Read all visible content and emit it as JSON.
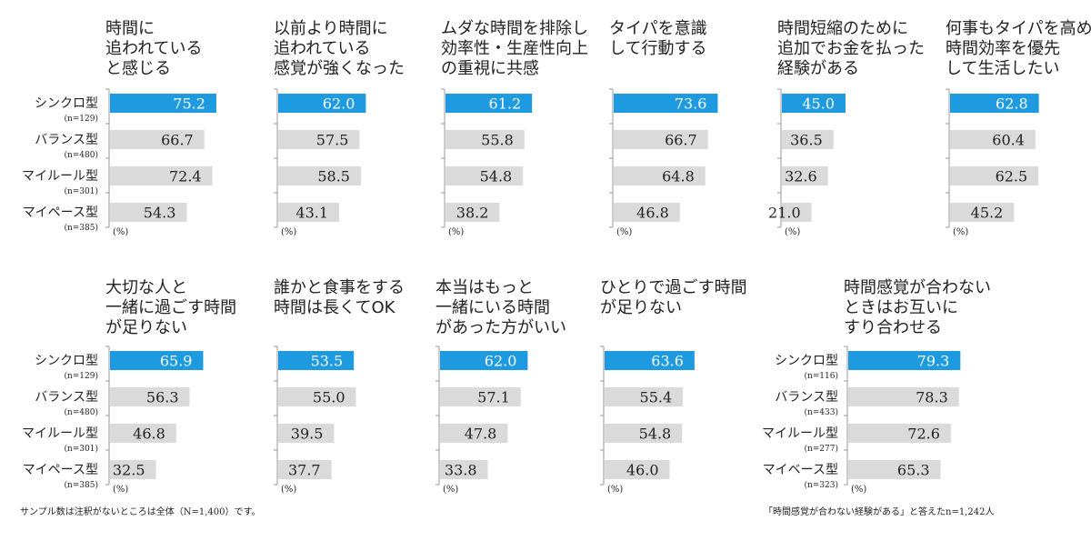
{
  "colors": {
    "highlight": "#1e9be0",
    "gray": "#dadada",
    "axis": "#999999",
    "text": "#222222"
  },
  "unit_label": "(%)",
  "groups": [
    {
      "categories": [
        "シンクロ型",
        "バランス型",
        "マイルール型",
        "マイペース型"
      ],
      "n_labels": [
        "(n=129)",
        "(n=480)",
        "(n=301)",
        "(n=385)"
      ]
    },
    {
      "categories": [
        "シンクロ型",
        "バランス型",
        "マイルール型",
        "マイベース型"
      ],
      "n_labels": [
        "(n=116)",
        "(n=433)",
        "(n=277)",
        "(n=323)"
      ]
    }
  ],
  "chart_data": [
    {
      "type": "bar",
      "title": "時間に\n追われている\nと感じる",
      "values": [
        75.2,
        66.7,
        72.4,
        54.3
      ]
    },
    {
      "type": "bar",
      "title": "以前より時間に\n追われている\n感覚が強くなった",
      "values": [
        62.0,
        57.5,
        58.5,
        43.1
      ]
    },
    {
      "type": "bar",
      "title": "ムダな時間を排除し\n効率性・生産性向上\nの重視に共感",
      "values": [
        61.2,
        55.8,
        54.8,
        38.2
      ]
    },
    {
      "type": "bar",
      "title": "タイパを意識\nして行動する",
      "values": [
        73.6,
        66.7,
        64.8,
        46.8
      ]
    },
    {
      "type": "bar",
      "title": "時間短縮のために\n追加でお金を払った\n経験がある",
      "values": [
        45.0,
        36.5,
        32.6,
        21.0
      ]
    },
    {
      "type": "bar",
      "title": "何事もタイパを高め\n時間効率を優先\nして生活したい",
      "values": [
        62.8,
        60.4,
        62.5,
        45.2
      ]
    },
    {
      "type": "bar",
      "title": "大切な人と\n一緒に過ごす時間\nが足りない",
      "values": [
        65.9,
        56.3,
        46.8,
        32.5
      ]
    },
    {
      "type": "bar",
      "title": "誰かと食事をする\n時間は長くてOK",
      "values": [
        53.5,
        55.0,
        39.5,
        37.7
      ]
    },
    {
      "type": "bar",
      "title": "本当はもっと\n一緒にいる時間\nがあった方がいい",
      "values": [
        62.0,
        57.1,
        47.8,
        33.8
      ]
    },
    {
      "type": "bar",
      "title": "ひとりで過ごす時間\nが足りない",
      "values": [
        63.6,
        55.4,
        54.8,
        46.0
      ]
    },
    {
      "type": "bar",
      "title": "時間感覚が合わない\nときはお互いに\nすり合わせる",
      "values": [
        79.3,
        78.3,
        72.6,
        65.3
      ]
    }
  ],
  "footnotes": {
    "left": "サンプル数は注釈がないところは全体（N=1,400）です。",
    "right": "「時間感覚が合わない経験がある」と答えたn=1,242人"
  }
}
